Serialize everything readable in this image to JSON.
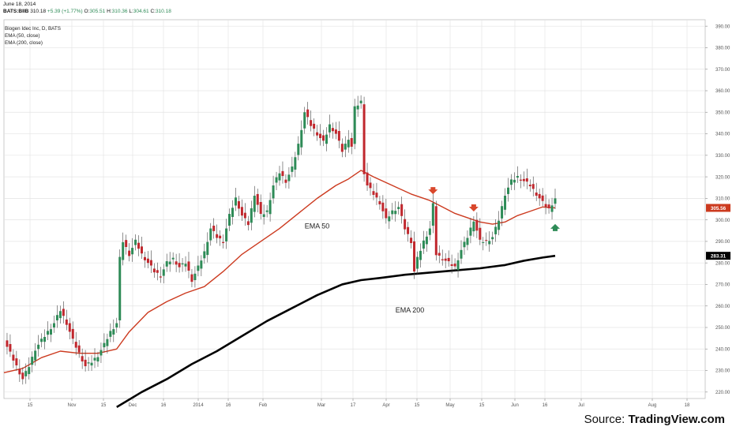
{
  "header": {
    "date": "June 18, 2014",
    "symbol": "BATS:BIIB",
    "last": "310.18",
    "change": "+5.39 (+1.77%)",
    "o_label": "O:",
    "o_value": "305.51",
    "h_label": "H:",
    "h_value": "310.36",
    "l_label": "L:",
    "l_value": "304.61",
    "c_label": "C:",
    "c_value": "310.18"
  },
  "legend": {
    "line1": "Biogen Idec Inc, D, BATS",
    "line2": "EMA (50, close)",
    "line3": "EMA (200, close)"
  },
  "source": {
    "prefix": "Source: ",
    "brand": "TradingView.com"
  },
  "colors": {
    "up": "#2e8b57",
    "down": "#c0272d",
    "ema50": "#cc3a1f",
    "ema200": "#000000",
    "grid": "#e4e4e4"
  },
  "chart_data": {
    "type": "candlestick",
    "ylim": [
      217,
      393
    ],
    "y_ticks": [
      220,
      230,
      240,
      250,
      260,
      270,
      280,
      290,
      300,
      310,
      320,
      330,
      340,
      350,
      360,
      370,
      380,
      390
    ],
    "x_ticks": [
      "15",
      "Nov",
      "15",
      "Dec",
      "16",
      "2014",
      "16",
      "Feb",
      "Mar",
      "17",
      "Apr",
      "15",
      "May",
      "15",
      "Jun",
      "16",
      "Jul",
      "Aug",
      "18"
    ],
    "price_labels": [
      {
        "value": 305.56,
        "text": "305.56",
        "color": "#cc3a1f"
      },
      {
        "value": 283.31,
        "text": "283.31",
        "color": "#000000"
      }
    ],
    "annotations": [
      {
        "text": "EMA 50",
        "x": 96,
        "y": 296
      },
      {
        "text": "EMA 200",
        "x": 125,
        "y": 257
      }
    ],
    "signals": [
      {
        "type": "down",
        "x": 137,
        "y": 313
      },
      {
        "type": "down",
        "x": 150,
        "y": 305
      },
      {
        "type": "up",
        "x": 176,
        "y": 297
      }
    ],
    "close": [
      [
        0,
        244
      ],
      [
        2,
        238
      ],
      [
        4,
        232
      ],
      [
        6,
        226
      ],
      [
        8,
        232
      ],
      [
        10,
        240
      ],
      [
        12,
        244
      ],
      [
        14,
        248
      ],
      [
        16,
        252
      ],
      [
        18,
        258
      ],
      [
        20,
        252
      ],
      [
        22,
        244
      ],
      [
        24,
        238
      ],
      [
        26,
        232
      ],
      [
        28,
        234
      ],
      [
        30,
        237
      ],
      [
        32,
        242
      ],
      [
        34,
        248
      ],
      [
        36,
        252
      ],
      [
        37,
        282
      ],
      [
        38,
        290
      ],
      [
        40,
        284
      ],
      [
        42,
        290
      ],
      [
        44,
        284
      ],
      [
        46,
        280
      ],
      [
        48,
        276
      ],
      [
        50,
        274
      ],
      [
        52,
        280
      ],
      [
        54,
        282
      ],
      [
        56,
        278
      ],
      [
        58,
        280
      ],
      [
        60,
        272
      ],
      [
        62,
        278
      ],
      [
        64,
        285
      ],
      [
        66,
        296
      ],
      [
        68,
        292
      ],
      [
        70,
        290
      ],
      [
        72,
        302
      ],
      [
        74,
        310
      ],
      [
        76,
        302
      ],
      [
        78,
        298
      ],
      [
        80,
        312
      ],
      [
        82,
        302
      ],
      [
        84,
        304
      ],
      [
        86,
        316
      ],
      [
        88,
        322
      ],
      [
        90,
        318
      ],
      [
        92,
        324
      ],
      [
        94,
        335
      ],
      [
        96,
        350
      ],
      [
        98,
        344
      ],
      [
        100,
        340
      ],
      [
        102,
        336
      ],
      [
        104,
        344
      ],
      [
        106,
        340
      ],
      [
        108,
        332
      ],
      [
        110,
        338
      ],
      [
        111,
        334
      ],
      [
        112,
        352
      ],
      [
        114,
        355
      ],
      [
        115,
        322
      ],
      [
        116,
        316
      ],
      [
        118,
        312
      ],
      [
        120,
        308
      ],
      [
        122,
        300
      ],
      [
        124,
        304
      ],
      [
        126,
        306
      ],
      [
        128,
        296
      ],
      [
        130,
        290
      ],
      [
        131,
        276
      ],
      [
        132,
        282
      ],
      [
        134,
        290
      ],
      [
        136,
        296
      ],
      [
        137,
        307
      ],
      [
        138,
        284
      ],
      [
        140,
        282
      ],
      [
        142,
        280
      ],
      [
        144,
        278
      ],
      [
        146,
        286
      ],
      [
        148,
        292
      ],
      [
        150,
        300
      ],
      [
        152,
        290
      ],
      [
        154,
        290
      ],
      [
        156,
        292
      ],
      [
        158,
        300
      ],
      [
        160,
        312
      ],
      [
        162,
        318
      ],
      [
        164,
        320
      ],
      [
        166,
        318
      ],
      [
        168,
        316
      ],
      [
        170,
        312
      ],
      [
        172,
        308
      ],
      [
        174,
        305
      ],
      [
        176,
        310
      ]
    ],
    "ema50": [
      [
        0,
        229
      ],
      [
        6,
        231
      ],
      [
        12,
        236
      ],
      [
        18,
        239
      ],
      [
        24,
        238
      ],
      [
        30,
        238
      ],
      [
        36,
        240
      ],
      [
        40,
        248
      ],
      [
        46,
        257
      ],
      [
        52,
        262
      ],
      [
        58,
        266
      ],
      [
        64,
        269
      ],
      [
        70,
        276
      ],
      [
        76,
        284
      ],
      [
        82,
        290
      ],
      [
        88,
        296
      ],
      [
        94,
        303
      ],
      [
        100,
        310
      ],
      [
        106,
        316
      ],
      [
        110,
        319
      ],
      [
        114,
        323
      ],
      [
        118,
        320
      ],
      [
        124,
        316
      ],
      [
        130,
        312
      ],
      [
        136,
        309
      ],
      [
        140,
        306
      ],
      [
        144,
        303
      ],
      [
        148,
        301
      ],
      [
        152,
        299
      ],
      [
        156,
        298
      ],
      [
        160,
        299
      ],
      [
        164,
        302
      ],
      [
        168,
        304
      ],
      [
        172,
        306
      ],
      [
        176,
        305.56
      ]
    ],
    "ema200": [
      [
        36,
        213
      ],
      [
        44,
        220
      ],
      [
        52,
        226
      ],
      [
        60,
        233
      ],
      [
        68,
        239
      ],
      [
        76,
        246
      ],
      [
        84,
        253
      ],
      [
        92,
        259
      ],
      [
        100,
        265
      ],
      [
        108,
        270
      ],
      [
        114,
        272
      ],
      [
        120,
        273
      ],
      [
        128,
        274.5
      ],
      [
        136,
        275.5
      ],
      [
        144,
        276.5
      ],
      [
        152,
        277.5
      ],
      [
        160,
        279
      ],
      [
        166,
        281
      ],
      [
        172,
        282.5
      ],
      [
        176,
        283.31
      ]
    ]
  }
}
